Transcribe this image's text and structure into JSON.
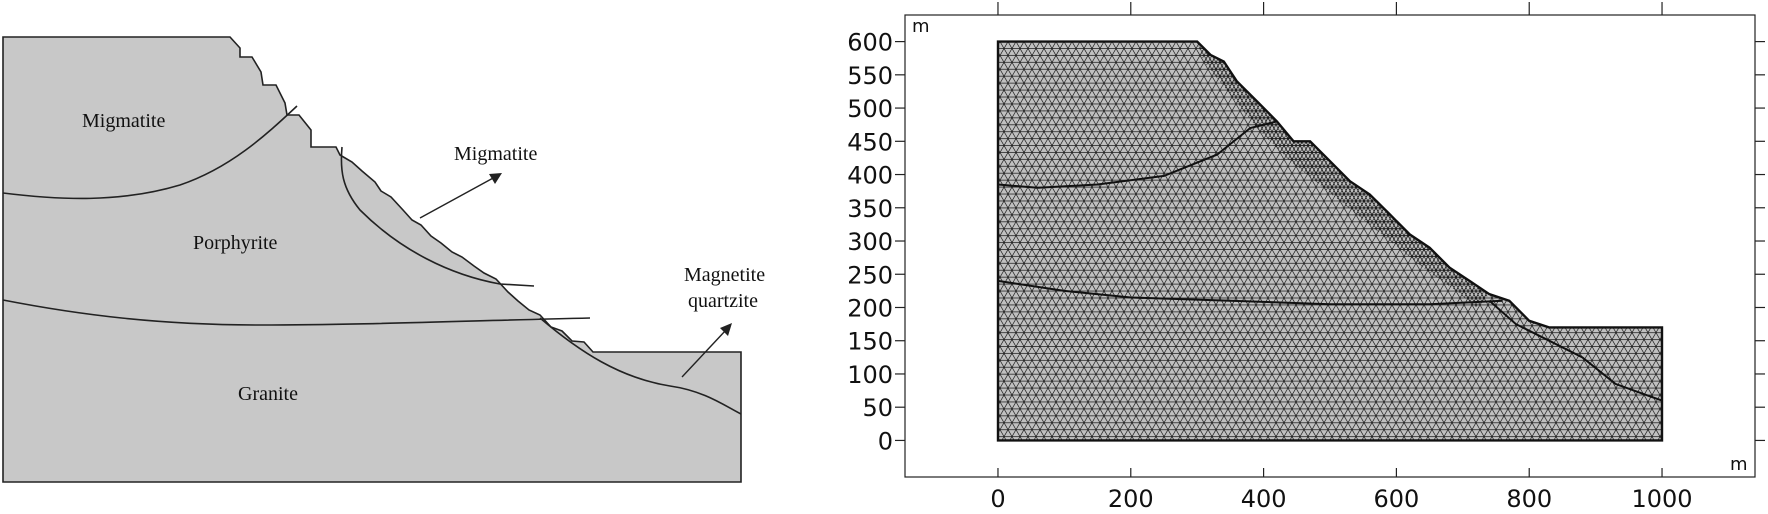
{
  "geology": {
    "labels": {
      "migmatite_upper": "Migmatite",
      "migmatite_callout": "Migmatite",
      "porphyrite": "Porphyrite",
      "granite": "Granite",
      "magnetite_line1": "Magnetite",
      "magnetite_line2": "quartzite"
    },
    "colors": {
      "fill": "#c8c8c8",
      "stroke": "#222222"
    }
  },
  "mesh": {
    "x_unit": "m",
    "y_unit": "m",
    "x_ticks": [
      "0",
      "200",
      "400",
      "600",
      "800",
      "1000"
    ],
    "y_ticks": [
      "0",
      "50",
      "100",
      "150",
      "200",
      "250",
      "300",
      "350",
      "400",
      "450",
      "500",
      "550",
      "600"
    ],
    "x_range": [
      -140,
      1140
    ],
    "y_range": [
      -55,
      640
    ],
    "colors": {
      "fill": "#c0c0c0",
      "mesh_line": "#1a1a1a"
    }
  }
}
